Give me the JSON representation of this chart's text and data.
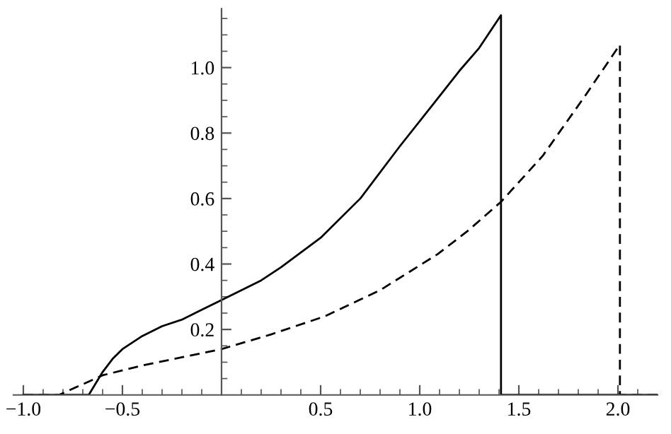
{
  "chart_data": {
    "type": "line",
    "series": [
      {
        "color": "#000000",
        "line_style": "solid",
        "x": [
          -1.0,
          -0.67,
          -0.6,
          -0.55,
          -0.5,
          -0.4,
          -0.3,
          -0.2,
          -0.1,
          0,
          0.2,
          0.3,
          0.5,
          0.7,
          0.9,
          1.07,
          1.2,
          1.3,
          1.41,
          1.41,
          2.2
        ],
        "values": [
          0,
          0,
          0.07,
          0.11,
          0.14,
          0.18,
          0.21,
          0.23,
          0.26,
          0.29,
          0.35,
          0.39,
          0.48,
          0.6,
          0.76,
          0.89,
          0.99,
          1.06,
          1.16,
          0,
          0
        ]
      },
      {
        "color": "#000000",
        "line_style": "dashed",
        "x": [
          -1.0,
          -0.82,
          -0.6,
          -0.4,
          -0.2,
          0,
          0.25,
          0.52,
          0.8,
          1.09,
          1.24,
          1.41,
          1.62,
          1.83,
          2.01,
          2.01,
          2.2
        ],
        "values": [
          0,
          0,
          0.06,
          0.09,
          0.115,
          0.14,
          0.185,
          0.24,
          0.32,
          0.43,
          0.5,
          0.59,
          0.73,
          0.91,
          1.07,
          0,
          0
        ]
      }
    ],
    "xlim": [
      -1.05,
      2.2
    ],
    "ylim": [
      0,
      1.18
    ],
    "xticks": [
      {
        "value": -1.0,
        "label": "−1.0"
      },
      {
        "value": -0.5,
        "label": "−0.5"
      },
      0.5,
      {
        "value": 1.0,
        "label": "1.0"
      },
      1.5,
      {
        "value": 2.0,
        "label": "2.0"
      },
      {
        "value": -0.9,
        "label": null
      },
      {
        "value": -0.8,
        "label": null
      },
      {
        "value": -0.7,
        "label": null
      },
      {
        "value": -0.6,
        "label": null
      },
      {
        "value": -0.4,
        "label": null
      },
      {
        "value": -0.3,
        "label": null
      },
      {
        "value": -0.2,
        "label": null
      },
      {
        "value": -0.1,
        "label": null
      },
      {
        "value": 0.1,
        "label": null
      },
      {
        "value": 0.2,
        "label": null
      },
      {
        "value": 0.3,
        "label": null
      },
      {
        "value": 0.4,
        "label": null
      },
      {
        "value": 0.6,
        "label": null
      },
      {
        "value": 0.7,
        "label": null
      },
      {
        "value": 0.8,
        "label": null
      },
      {
        "value": 0.9,
        "label": null
      },
      {
        "value": 1.1,
        "label": null
      },
      {
        "value": 1.2,
        "label": null
      },
      {
        "value": 1.3,
        "label": null
      },
      {
        "value": 1.4,
        "label": null
      },
      {
        "value": 1.6,
        "label": null
      },
      {
        "value": 1.7,
        "label": null
      },
      {
        "value": 1.8,
        "label": null
      },
      {
        "value": 1.9,
        "label": null
      },
      {
        "value": 2.1,
        "label": null
      }
    ],
    "yticks": [
      0.2,
      0.4,
      0.6,
      0.8,
      {
        "value": 1.0,
        "label": "1.0"
      },
      {
        "value": 0.05,
        "label": null
      },
      {
        "value": 0.1,
        "label": null
      },
      {
        "value": 0.15,
        "label": null
      },
      {
        "value": 0.25,
        "label": null
      },
      {
        "value": 0.3,
        "label": null
      },
      {
        "value": 0.35,
        "label": null
      },
      {
        "value": 0.45,
        "label": null
      },
      {
        "value": 0.5,
        "label": null
      },
      {
        "value": 0.55,
        "label": null
      },
      {
        "value": 0.65,
        "label": null
      },
      {
        "value": 0.7,
        "label": null
      },
      {
        "value": 0.75,
        "label": null
      },
      {
        "value": 0.85,
        "label": null
      },
      {
        "value": 0.9,
        "label": null
      },
      {
        "value": 0.95,
        "label": null
      },
      {
        "value": 1.05,
        "label": null
      },
      {
        "value": 1.1,
        "label": null
      },
      {
        "value": 1.15,
        "label": null
      }
    ],
    "grid": false,
    "legend": false
  }
}
